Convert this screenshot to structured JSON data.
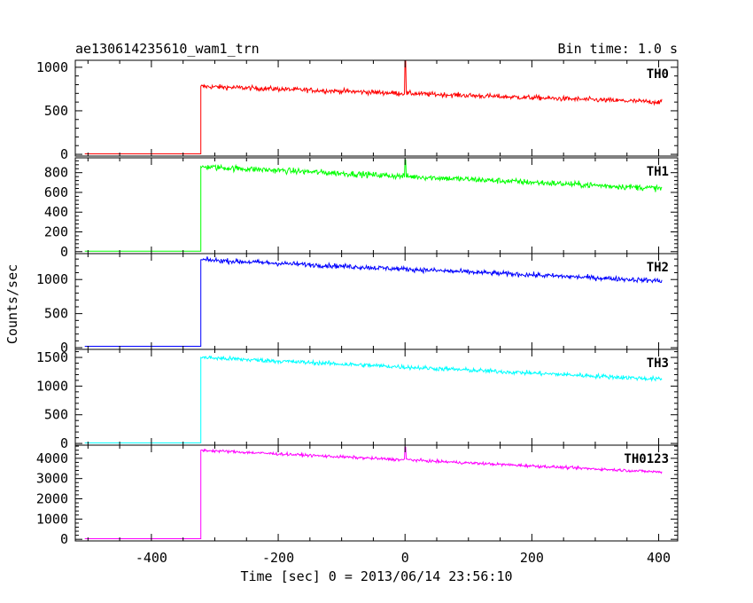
{
  "chart_data": {
    "type": "line",
    "title": "ae130614235610_wam1_trn",
    "bin_time_label": "Bin time: 1.0 s",
    "xlabel": "Time [sec] 0 = 2013/06/14 23:56:10",
    "ylabel": "Counts/sec",
    "xlim": [
      -520,
      430
    ],
    "x_ticks": [
      -400,
      -200,
      0,
      200,
      400
    ],
    "event_start_x": -322,
    "event_end_x": 405,
    "series": [
      {
        "name": "TH0",
        "color": "#ff0000",
        "ylim": [
          -20,
          1080
        ],
        "y_ticks": [
          0,
          500,
          1000
        ],
        "baseline": 5,
        "start_level": 780,
        "end_level": 600,
        "noise": 28,
        "spike": {
          "x": 0,
          "value": 1080,
          "decay_to": 700
        }
      },
      {
        "name": "TH1",
        "color": "#00ff00",
        "ylim": [
          -20,
          950
        ],
        "y_ticks": [
          0,
          200,
          400,
          600,
          800
        ],
        "baseline": 5,
        "start_level": 860,
        "end_level": 640,
        "noise": 30,
        "spike": {
          "x": 0,
          "value": 930,
          "decay_to": 760
        }
      },
      {
        "name": "TH2",
        "color": "#0000ff",
        "ylim": [
          -25,
          1380
        ],
        "y_ticks": [
          0,
          500,
          1000
        ],
        "baseline": 20,
        "start_level": 1290,
        "end_level": 980,
        "noise": 35,
        "spike": null
      },
      {
        "name": "TH3",
        "color": "#00ffff",
        "ylim": [
          -30,
          1640
        ],
        "y_ticks": [
          0,
          500,
          1000,
          1500
        ],
        "baseline": 10,
        "start_level": 1500,
        "end_level": 1120,
        "noise": 38,
        "spike": null
      },
      {
        "name": "TH0123",
        "color": "#ff00ff",
        "ylim": [
          -80,
          4650
        ],
        "y_ticks": [
          0,
          1000,
          2000,
          3000,
          4000
        ],
        "baseline": 30,
        "start_level": 4400,
        "end_level": 3320,
        "noise": 70,
        "spike": {
          "x": 0,
          "value": 4550,
          "decay_to": 3950
        }
      }
    ]
  }
}
